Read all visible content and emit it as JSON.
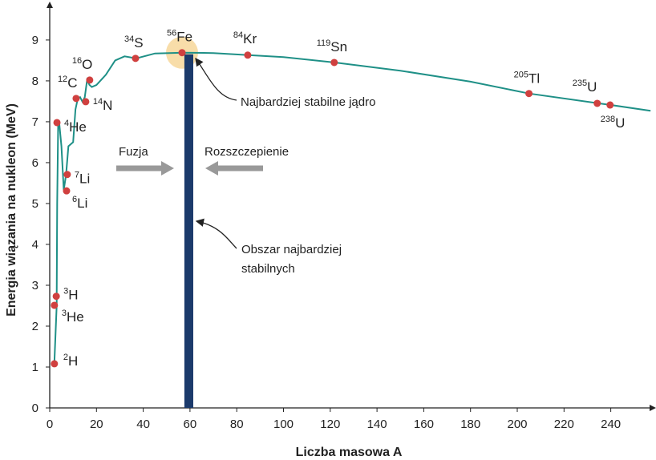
{
  "chart_data": {
    "type": "scatter",
    "x_label": "Liczba masowa A",
    "y_label": "Energia wiązania na nukleon (MeV)",
    "xlim": [
      0,
      259
    ],
    "ylim": [
      0,
      9.9
    ],
    "xticks": [
      0,
      20,
      40,
      60,
      80,
      100,
      120,
      140,
      160,
      180,
      200,
      220,
      240
    ],
    "yticks": [
      0,
      1,
      2,
      3,
      4,
      5,
      6,
      7,
      8,
      9
    ],
    "curve": {
      "color": "#1f9087",
      "x": [
        2,
        3,
        3,
        3.2,
        3.6,
        4,
        5,
        6,
        7,
        8,
        9,
        10,
        11,
        12,
        13,
        14,
        15,
        16,
        17,
        18,
        20,
        24,
        28,
        32,
        37,
        45,
        57,
        70,
        85,
        100,
        122,
        150,
        180,
        205,
        235,
        240,
        257
      ],
      "y": [
        1.11,
        2.51,
        2.73,
        5.0,
        6.9,
        7.0,
        6.4,
        5.33,
        5.71,
        6.4,
        6.45,
        6.5,
        7.3,
        7.57,
        7.6,
        7.49,
        7.6,
        8.02,
        7.9,
        7.85,
        7.9,
        8.15,
        8.5,
        8.6,
        8.55,
        8.67,
        8.69,
        8.68,
        8.63,
        8.58,
        8.45,
        8.25,
        7.98,
        7.69,
        7.45,
        7.41,
        7.27
      ]
    },
    "point_color": "#d0403f",
    "points": [
      {
        "mass": "2",
        "symbol": "H",
        "x": 2,
        "y": 1.08
      },
      {
        "mass": "3",
        "symbol": "He",
        "x": 2,
        "y": 2.51
      },
      {
        "mass": "3",
        "symbol": "H",
        "x": 2.8,
        "y": 2.73
      },
      {
        "mass": "4",
        "symbol": "He",
        "x": 3.1,
        "y": 6.98
      },
      {
        "mass": "7",
        "symbol": "Li",
        "x": 7.5,
        "y": 5.71
      },
      {
        "mass": "6",
        "symbol": "Li",
        "x": 7.2,
        "y": 5.31
      },
      {
        "mass": "12",
        "symbol": "C",
        "x": 11.3,
        "y": 7.57
      },
      {
        "mass": "14",
        "symbol": "N",
        "x": 15.4,
        "y": 7.49
      },
      {
        "mass": "16",
        "symbol": "O",
        "x": 17.1,
        "y": 8.02
      },
      {
        "mass": "34",
        "symbol": "S",
        "x": 36.7,
        "y": 8.55
      },
      {
        "mass": "56",
        "symbol": "Fe",
        "x": 56.6,
        "y": 8.69
      },
      {
        "mass": "84",
        "symbol": "Kr",
        "x": 84.7,
        "y": 8.63
      },
      {
        "mass": "119",
        "symbol": "Sn",
        "x": 121.7,
        "y": 8.45
      },
      {
        "mass": "205",
        "symbol": "Tl",
        "x": 205,
        "y": 7.69
      },
      {
        "mass": "235",
        "symbol": "U",
        "x": 234.2,
        "y": 7.45
      },
      {
        "mass": "238",
        "symbol": "U",
        "x": 239.7,
        "y": 7.41
      }
    ],
    "stable_band": {
      "x0": 57.6,
      "x1": 61.4,
      "top": 8.65,
      "color": "#1b3a6b"
    },
    "annotations": {
      "most_stable": "Najbardziej stabilne jądro",
      "region_line1": "Obszar najbardziej",
      "region_line2": "stabilnych",
      "fusion": "Fuzja",
      "fission": "Rozszczepienie"
    }
  }
}
